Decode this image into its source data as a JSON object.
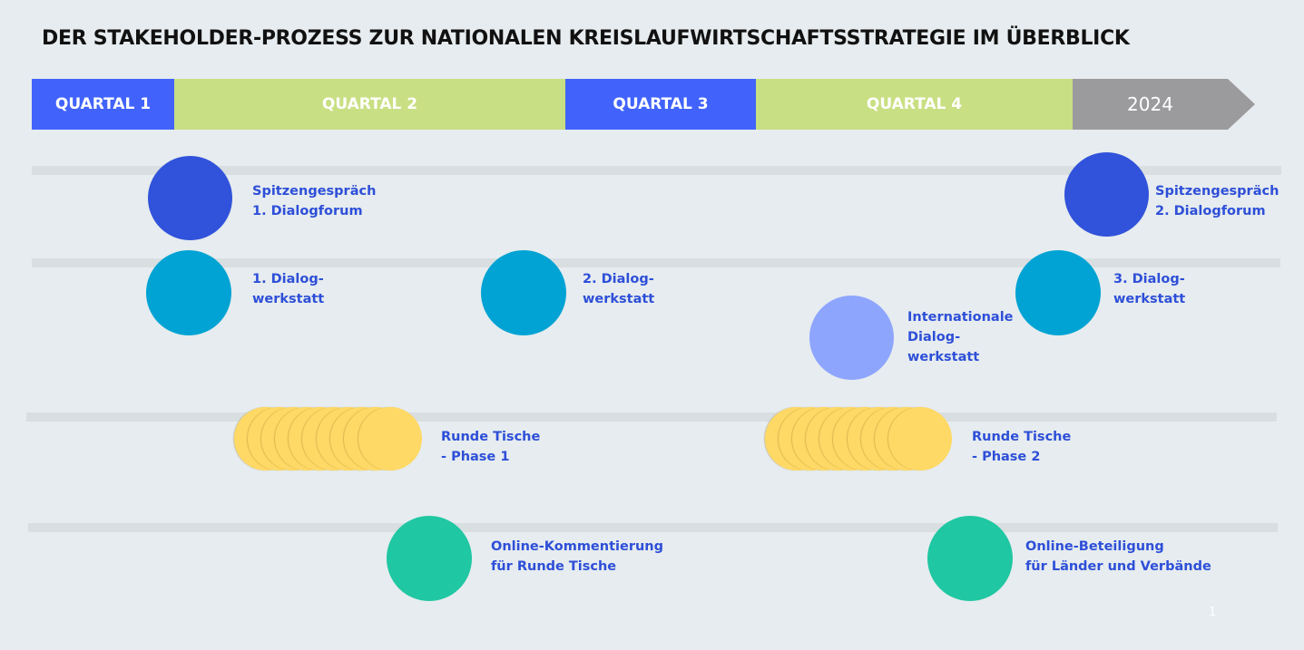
{
  "title": "DER STAKEHOLDER-PROZESS ZUR NATIONALEN KREISLAUFWIRTSCHAFTSSTRATEGIE IM ÜBERBLICK",
  "colors": {
    "background": "#e6ecef",
    "quarter_blue": "#4163fc",
    "quarter_green": "#c9df83",
    "final_grey": "#9b9b9e",
    "spitzengespraech": "#3152da",
    "dialogwerkstatt": "#00a3d3",
    "international": "#8ea5fe",
    "runde_tische": "#fed966",
    "online": "#1fc7a2",
    "label_text": "#2e4fd8"
  },
  "timeline": [
    {
      "label": "QUARTAL 1"
    },
    {
      "label": "QUARTAL 2"
    },
    {
      "label": "QUARTAL 3"
    },
    {
      "label": "QUARTAL 4"
    },
    {
      "label": "2024"
    }
  ],
  "events": {
    "spitzengespraech_1": {
      "line1": "Spitzengespräch",
      "line2": "1. Dialogforum"
    },
    "spitzengespraech_2": {
      "line1": "Spitzengespräch",
      "line2": "2. Dialogforum"
    },
    "dialogwerkstatt_1": {
      "line1": "1. Dialog-",
      "line2": "werkstatt"
    },
    "dialogwerkstatt_2": {
      "line1": "2. Dialog-",
      "line2": "werkstatt"
    },
    "dialogwerkstatt_3": {
      "line1": "3. Dialog-",
      "line2": "werkstatt"
    },
    "international": {
      "line1": "Internationale",
      "line2": "Dialog-",
      "line3": "werkstatt"
    },
    "runde_tische_1": {
      "line1": "Runde Tische",
      "line2": "- Phase 1"
    },
    "runde_tische_2": {
      "line1": "Runde Tische",
      "line2": "- Phase 2"
    },
    "online_1": {
      "line1": "Online-Kommentierung",
      "line2": "für Runde Tische"
    },
    "online_2": {
      "line1": "Online-Beteiligung",
      "line2": "für Länder und Verbände"
    }
  },
  "page_number": "1"
}
